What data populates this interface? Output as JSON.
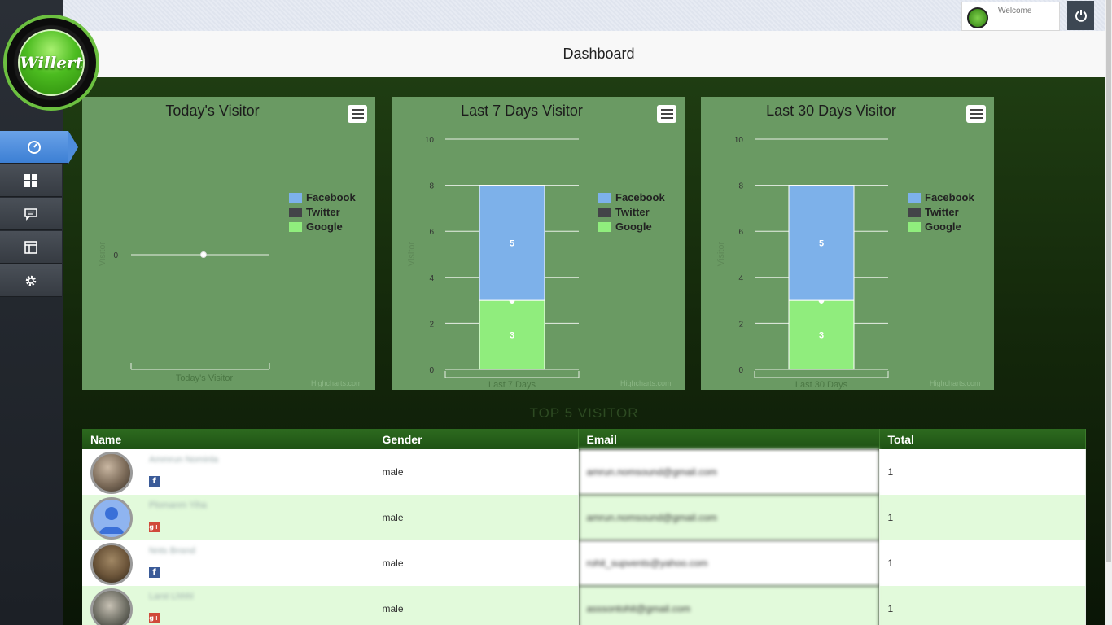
{
  "app": {
    "logo_text": "Willert",
    "page_title": "Dashboard",
    "welcome_label": "Welcome"
  },
  "nav": [
    {
      "name": "dashboard",
      "icon": "speedometer-icon",
      "active": true
    },
    {
      "name": "widgets",
      "icon": "grid-icon",
      "active": false
    },
    {
      "name": "messages",
      "icon": "chat-icon",
      "active": false
    },
    {
      "name": "layout",
      "icon": "layout-icon",
      "active": false
    },
    {
      "name": "settings",
      "icon": "gear-icon",
      "active": false
    }
  ],
  "colors": {
    "facebook": "#7db1ea",
    "twitter": "#434348",
    "google": "#90ed7d",
    "panel": "#6a9a63"
  },
  "chart_data": [
    {
      "type": "line",
      "title": "Today's Visitor",
      "ylabel": "Visitor",
      "categories": [
        "Today's Visitor"
      ],
      "yticks": [
        0
      ],
      "series": [
        {
          "name": "Facebook",
          "values": [
            0
          ]
        }
      ],
      "legend": [
        "Facebook",
        "Twitter",
        "Google"
      ],
      "legend_position": "right",
      "credit": "Highcharts.com"
    },
    {
      "type": "bar",
      "stacked": true,
      "title": "Last 7 Days Visitor",
      "ylabel": "Visitor",
      "categories": [
        "Last 7 Days"
      ],
      "ylim": [
        0,
        10
      ],
      "yticks": [
        0,
        2,
        4,
        6,
        8,
        10
      ],
      "series": [
        {
          "name": "Facebook",
          "values": [
            5
          ]
        },
        {
          "name": "Twitter",
          "values": [
            0
          ]
        },
        {
          "name": "Google",
          "values": [
            3
          ]
        }
      ],
      "legend": [
        "Facebook",
        "Twitter",
        "Google"
      ],
      "legend_position": "right",
      "grid": true,
      "credit": "Highcharts.com"
    },
    {
      "type": "bar",
      "stacked": true,
      "title": "Last 30 Days Visitor",
      "ylabel": "Visitor",
      "categories": [
        "Last 30 Days"
      ],
      "ylim": [
        0,
        10
      ],
      "yticks": [
        0,
        2,
        4,
        6,
        8,
        10
      ],
      "series": [
        {
          "name": "Facebook",
          "values": [
            5
          ]
        },
        {
          "name": "Twitter",
          "values": [
            0
          ]
        },
        {
          "name": "Google",
          "values": [
            3
          ]
        }
      ],
      "legend": [
        "Facebook",
        "Twitter",
        "Google"
      ],
      "legend_position": "right",
      "grid": true,
      "credit": "Highcharts.com"
    }
  ],
  "top5": {
    "title": "TOP 5 VISITOR",
    "columns": [
      "Name",
      "Gender",
      "Email",
      "Total"
    ],
    "rows": [
      {
        "name": "Ammrun Nominla",
        "network": "facebook",
        "gender": "male",
        "email": "amrun.nomsound@gmail.com",
        "total": "1"
      },
      {
        "name": "Plomanm Yiha",
        "network": "google",
        "gender": "male",
        "email": "amrun.nomsound@gmail.com",
        "total": "1"
      },
      {
        "name": "Nnts Bnsnd",
        "network": "facebook",
        "gender": "male",
        "email": "rohit_supvents@yahoo.com",
        "total": "1"
      },
      {
        "name": "Larst Lhhhl",
        "network": "google",
        "gender": "male",
        "email": "asssontohit@gmail.com",
        "total": "1"
      }
    ]
  }
}
